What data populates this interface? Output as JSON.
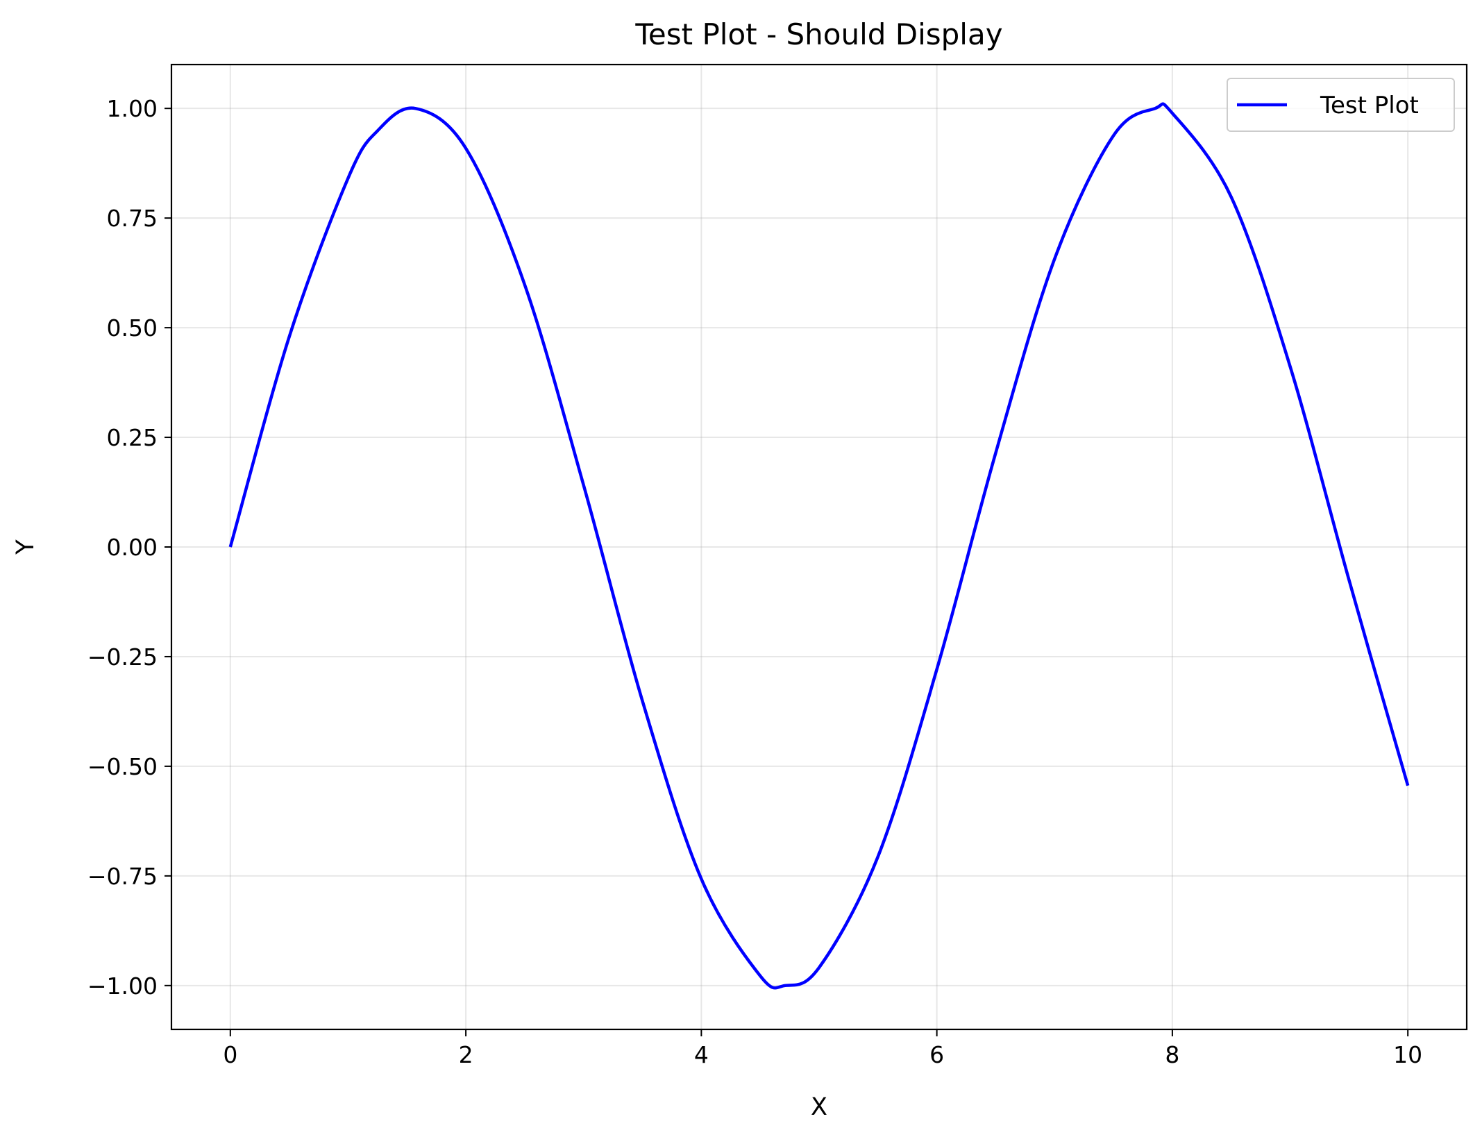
{
  "chart_data": {
    "type": "line",
    "title": "Test Plot - Should Display",
    "xlabel": "X",
    "ylabel": "Y",
    "xlim": [
      -0.5,
      10.5
    ],
    "ylim": [
      -1.1,
      1.1
    ],
    "xticks": [
      0,
      2,
      4,
      6,
      8,
      10
    ],
    "xtick_labels": [
      "0",
      "2",
      "4",
      "6",
      "8",
      "10"
    ],
    "yticks": [
      1.0,
      0.75,
      0.5,
      0.25,
      0.0,
      -0.25,
      -0.5,
      -0.75,
      -1.0
    ],
    "ytick_labels": [
      "1.00",
      "0.75",
      "0.50",
      "0.25",
      "0.00",
      "−0.25",
      "−0.50",
      "−0.75",
      "−1.00"
    ],
    "grid": true,
    "legend_position": "top-right",
    "series": [
      {
        "name": "Test Plot",
        "color": "#0000ff",
        "x": [
          0.0,
          0.5,
          1.0,
          1.25,
          1.5708,
          2.0,
          2.5,
          3.0,
          3.5,
          4.0,
          4.5,
          4.7124,
          5.0,
          5.5,
          6.0,
          6.5,
          7.0,
          7.5,
          7.854,
          8.0,
          8.5,
          9.0,
          9.5,
          10.0
        ],
        "y": [
          0.0,
          0.479,
          0.841,
          0.949,
          1.0,
          0.909,
          0.598,
          0.141,
          -0.351,
          -0.757,
          -0.978,
          -1.0,
          -0.959,
          -0.706,
          -0.279,
          0.215,
          0.657,
          0.938,
          1.0,
          0.989,
          0.798,
          0.412,
          -0.075,
          -0.544
        ]
      }
    ]
  }
}
